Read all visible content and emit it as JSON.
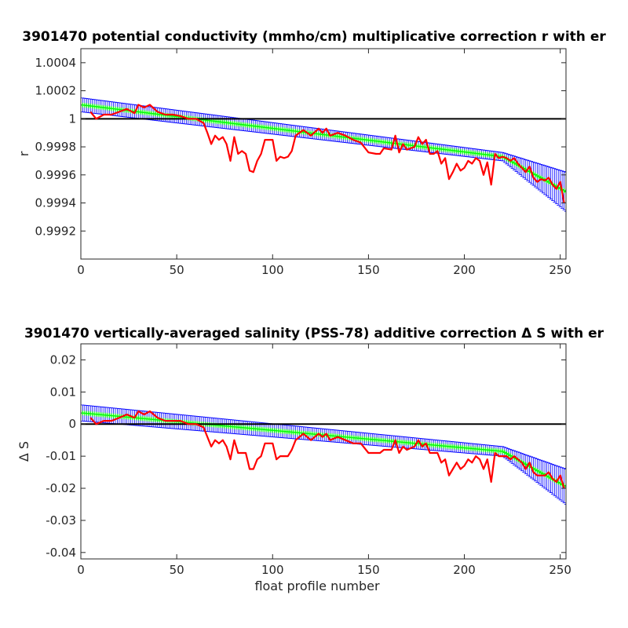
{
  "chart_data": [
    {
      "type": "line",
      "title": "3901470 potential conductivity (mmho/cm) multiplicative correction r with er",
      "xlabel": "",
      "ylabel": "r",
      "xlim": [
        0,
        253
      ],
      "ylim": [
        0.999,
        1.0005
      ],
      "xticks": [
        0,
        50,
        100,
        150,
        200,
        250
      ],
      "xtick_labels": [
        "0",
        "50",
        "100",
        "150",
        "200",
        "250"
      ],
      "yticks": [
        0.9992,
        0.9994,
        0.9996,
        0.9998,
        1.0,
        1.0002,
        1.0004
      ],
      "ytick_labels": [
        "0.9992",
        "0.9994",
        "0.9996",
        "0.9998",
        "1",
        "1.0002",
        "1.0004"
      ],
      "reference_line": 1.0,
      "grid": false,
      "colors": {
        "correction": "#00ff00",
        "error": "#0000ff",
        "raw": "#ff0000",
        "reference": "#000000"
      },
      "series": [
        {
          "kind": "errorbar",
          "x": [
            0,
            220,
            253
          ],
          "y": [
            1.0001,
            0.99973,
            0.99948
          ],
          "err": [
            5e-05,
            3e-05,
            0.00014
          ]
        },
        {
          "kind": "line",
          "x": [
            5,
            8,
            12,
            16,
            20,
            24,
            28,
            30,
            33,
            36,
            40,
            44,
            48,
            52,
            56,
            60,
            64,
            66,
            68,
            70,
            72,
            74,
            76,
            78,
            80,
            82,
            84,
            86,
            88,
            90,
            92,
            94,
            96,
            98,
            100,
            102,
            104,
            106,
            108,
            110,
            112,
            116,
            120,
            124,
            126,
            128,
            130,
            134,
            138,
            142,
            146,
            150,
            154,
            156,
            158,
            162,
            164,
            166,
            168,
            170,
            174,
            176,
            178,
            180,
            182,
            184,
            186,
            188,
            190,
            192,
            194,
            196,
            198,
            200,
            202,
            204,
            206,
            208,
            210,
            212,
            214,
            216,
            218,
            220,
            222,
            224,
            226,
            228,
            230,
            232,
            234,
            236,
            238,
            240,
            242,
            244,
            246,
            248,
            250,
            252
          ],
          "y": [
            1.00005,
            1.0,
            1.00003,
            1.00003,
            1.00005,
            1.00007,
            1.00004,
            1.0001,
            1.00008,
            1.0001,
            1.00005,
            1.00003,
            1.00003,
            1.00002,
            1.0,
            1.0,
            0.99997,
            0.9999,
            0.99982,
            0.99988,
            0.99985,
            0.99987,
            0.99982,
            0.9997,
            0.99987,
            0.99975,
            0.99977,
            0.99975,
            0.99963,
            0.99962,
            0.9997,
            0.99975,
            0.99985,
            0.99985,
            0.99985,
            0.9997,
            0.99973,
            0.99972,
            0.99973,
            0.99977,
            0.99988,
            0.99992,
            0.99988,
            0.99993,
            0.9999,
            0.99993,
            0.99988,
            0.9999,
            0.99988,
            0.99985,
            0.99983,
            0.99976,
            0.99975,
            0.99975,
            0.99979,
            0.99978,
            0.99988,
            0.99976,
            0.99982,
            0.99978,
            0.9998,
            0.99987,
            0.99982,
            0.99985,
            0.99975,
            0.99975,
            0.99977,
            0.99968,
            0.99972,
            0.99957,
            0.99962,
            0.99968,
            0.99963,
            0.99965,
            0.9997,
            0.99968,
            0.99972,
            0.9997,
            0.9996,
            0.99969,
            0.99953,
            0.99975,
            0.99972,
            0.99973,
            0.99972,
            0.9997,
            0.99972,
            0.99968,
            0.99965,
            0.99962,
            0.99966,
            0.99958,
            0.99955,
            0.99957,
            0.99956,
            0.99958,
            0.99953,
            0.9995,
            0.99955,
            0.9994
          ]
        }
      ]
    },
    {
      "type": "line",
      "title": "3901470 vertically-averaged salinity (PSS-78) additive correction Δ S with er",
      "xlabel": "float profile number",
      "ylabel": "Δ S",
      "xlim": [
        0,
        253
      ],
      "ylim": [
        -0.042,
        0.025
      ],
      "xticks": [
        0,
        50,
        100,
        150,
        200,
        250
      ],
      "xtick_labels": [
        "0",
        "50",
        "100",
        "150",
        "200",
        "250"
      ],
      "yticks": [
        -0.04,
        -0.03,
        -0.02,
        -0.01,
        0,
        0.01,
        0.02
      ],
      "ytick_labels": [
        "-0.04",
        "-0.03",
        "-0.02",
        "-0.01",
        "0",
        "0.01",
        "0.02"
      ],
      "reference_line": 0,
      "grid": false,
      "colors": {
        "correction": "#00ff00",
        "error": "#0000ff",
        "raw": "#ff0000",
        "reference": "#000000"
      },
      "series": [
        {
          "kind": "errorbar",
          "x": [
            0,
            220,
            253
          ],
          "y": [
            0.0035,
            -0.0085,
            -0.0195
          ],
          "err": [
            0.0025,
            0.0015,
            0.0055
          ]
        },
        {
          "kind": "line",
          "x": [
            5,
            8,
            12,
            16,
            20,
            24,
            28,
            30,
            33,
            36,
            40,
            44,
            48,
            52,
            56,
            60,
            64,
            66,
            68,
            70,
            72,
            74,
            76,
            78,
            80,
            82,
            84,
            86,
            88,
            90,
            92,
            94,
            96,
            98,
            100,
            102,
            104,
            106,
            108,
            110,
            112,
            116,
            120,
            124,
            126,
            128,
            130,
            134,
            138,
            142,
            146,
            150,
            154,
            156,
            158,
            162,
            164,
            166,
            168,
            170,
            174,
            176,
            178,
            180,
            182,
            184,
            186,
            188,
            190,
            192,
            194,
            196,
            198,
            200,
            202,
            204,
            206,
            208,
            210,
            212,
            214,
            216,
            218,
            220,
            222,
            224,
            226,
            228,
            230,
            232,
            234,
            236,
            238,
            240,
            242,
            244,
            246,
            248,
            250,
            252
          ],
          "y": [
            0.002,
            0.0,
            0.001,
            0.001,
            0.002,
            0.003,
            0.002,
            0.004,
            0.003,
            0.004,
            0.002,
            0.001,
            0.001,
            0.001,
            0.0,
            0.0,
            -0.001,
            -0.004,
            -0.007,
            -0.005,
            -0.006,
            -0.005,
            -0.007,
            -0.011,
            -0.005,
            -0.009,
            -0.009,
            -0.009,
            -0.014,
            -0.014,
            -0.011,
            -0.01,
            -0.006,
            -0.006,
            -0.006,
            -0.011,
            -0.01,
            -0.01,
            -0.01,
            -0.008,
            -0.005,
            -0.003,
            -0.005,
            -0.003,
            -0.004,
            -0.003,
            -0.005,
            -0.004,
            -0.005,
            -0.006,
            -0.006,
            -0.009,
            -0.009,
            -0.009,
            -0.008,
            -0.008,
            -0.005,
            -0.009,
            -0.007,
            -0.008,
            -0.007,
            -0.005,
            -0.007,
            -0.006,
            -0.009,
            -0.009,
            -0.009,
            -0.012,
            -0.011,
            -0.016,
            -0.014,
            -0.012,
            -0.014,
            -0.013,
            -0.011,
            -0.012,
            -0.01,
            -0.011,
            -0.014,
            -0.011,
            -0.018,
            -0.009,
            -0.01,
            -0.01,
            -0.01,
            -0.011,
            -0.01,
            -0.011,
            -0.012,
            -0.014,
            -0.012,
            -0.015,
            -0.016,
            -0.016,
            -0.016,
            -0.015,
            -0.017,
            -0.018,
            -0.016,
            -0.02
          ]
        }
      ]
    }
  ]
}
